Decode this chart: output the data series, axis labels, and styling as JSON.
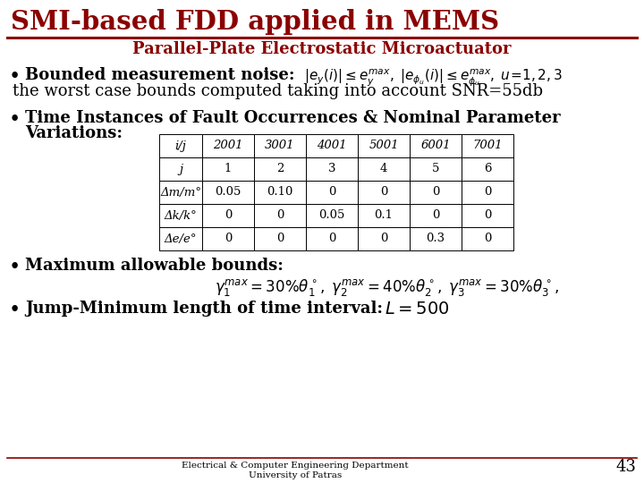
{
  "title": "SMI-based FDD applied in MEMS",
  "subtitle": "Parallel-Plate Electrostatic Microactuator",
  "title_color": "#8B0000",
  "bg_color": "#FFFFFF",
  "bullet1_line2": "the worst case bounds computed taking into account SNR=55db",
  "table_header_row": [
    "i/j",
    "2001",
    "3001",
    "4001",
    "5001",
    "6001",
    "7001"
  ],
  "table_rows": [
    [
      "j",
      "1",
      "2",
      "3",
      "4",
      "5",
      "6"
    ],
    [
      "Δm/m°",
      "0.05",
      "0.10",
      "0",
      "0",
      "0",
      "0"
    ],
    [
      "Δk/k°",
      "0",
      "0",
      "0.05",
      "0.1",
      "0",
      "0"
    ],
    [
      "Δe/e°",
      "0",
      "0",
      "0",
      "0",
      "0.3",
      "0"
    ]
  ],
  "footer1": "Electrical & Computer Engineering Department",
  "footer2": "University of Patras",
  "page_num": "43",
  "line_color": "#8B0000",
  "footer_line_color": "#8B0000"
}
